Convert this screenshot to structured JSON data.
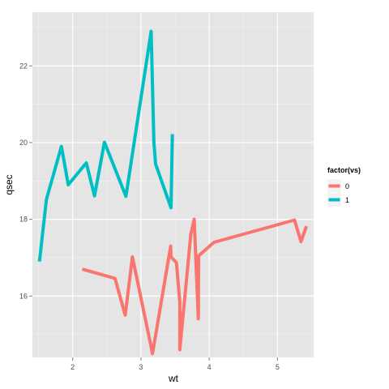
{
  "chart_data": {
    "type": "line",
    "xlabel": "wt",
    "ylabel": "qsec",
    "xlim": [
      1.41,
      5.53
    ],
    "ylim": [
      14.4,
      23.4
    ],
    "x_ticks": [
      2,
      3,
      4,
      5
    ],
    "y_ticks": [
      16,
      18,
      20,
      22
    ],
    "grid": true,
    "legend": {
      "title": "factor(vs)",
      "position": "right",
      "entries": [
        "0",
        "1"
      ]
    },
    "series": [
      {
        "name": "0",
        "color": "#F8766D",
        "points": [
          [
            2.14,
            16.7
          ],
          [
            2.62,
            16.46
          ],
          [
            2.77,
            15.5
          ],
          [
            2.875,
            17.02
          ],
          [
            3.17,
            14.5
          ],
          [
            3.435,
            17.3
          ],
          [
            3.44,
            17.02
          ],
          [
            3.52,
            16.87
          ],
          [
            3.57,
            15.84
          ],
          [
            3.57,
            14.6
          ],
          [
            3.73,
            17.6
          ],
          [
            3.78,
            18.0
          ],
          [
            3.84,
            15.41
          ],
          [
            3.845,
            17.05
          ],
          [
            4.07,
            17.4
          ],
          [
            5.25,
            17.98
          ],
          [
            5.345,
            17.42
          ],
          [
            5.424,
            17.82
          ]
        ]
      },
      {
        "name": "1",
        "color": "#00BFC4",
        "points": [
          [
            1.513,
            16.9
          ],
          [
            1.615,
            18.52
          ],
          [
            1.835,
            19.9
          ],
          [
            1.935,
            18.9
          ],
          [
            2.2,
            19.47
          ],
          [
            2.32,
            18.61
          ],
          [
            2.465,
            20.01
          ],
          [
            2.78,
            18.6
          ],
          [
            3.15,
            22.9
          ],
          [
            3.19,
            20.0
          ],
          [
            3.215,
            19.44
          ],
          [
            3.44,
            18.3
          ],
          [
            3.46,
            20.22
          ]
        ]
      }
    ]
  }
}
